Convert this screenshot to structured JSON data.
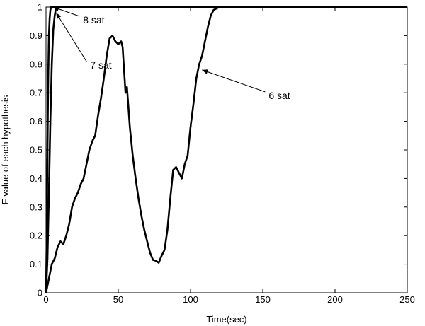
{
  "chart_data": {
    "type": "line",
    "xlabel": "Time(sec)",
    "ylabel": "F value of each hypothesis",
    "xlim": [
      0,
      250
    ],
    "ylim": [
      0,
      1
    ],
    "xticks": [
      0,
      50,
      100,
      150,
      200,
      250
    ],
    "yticks": [
      0,
      0.1,
      0.2,
      0.3,
      0.4,
      0.5,
      0.6,
      0.7,
      0.8,
      0.9,
      1
    ],
    "grid": false,
    "legend": "none",
    "line_color": "#000000",
    "series": [
      {
        "name": "8 sat",
        "x": [
          0,
          0.5,
          1,
          1.5,
          2,
          2.5,
          3,
          3.5,
          4,
          250
        ],
        "y": [
          0,
          0.2,
          0.5,
          0.75,
          0.9,
          0.96,
          0.99,
          1.0,
          1.0,
          1.0
        ]
      },
      {
        "name": "7 sat",
        "x": [
          0,
          1,
          2,
          3,
          4,
          5,
          6,
          7,
          250
        ],
        "y": [
          0,
          0.12,
          0.35,
          0.6,
          0.8,
          0.92,
          0.97,
          1.0,
          1.0
        ]
      },
      {
        "name": "6 sat",
        "x": [
          0,
          2,
          4,
          6,
          8,
          10,
          12,
          14,
          16,
          18,
          20,
          22,
          24,
          26,
          28,
          30,
          32,
          34,
          36,
          38,
          40,
          42,
          44,
          46,
          48,
          50,
          52,
          53,
          54,
          55,
          56,
          58,
          60,
          62,
          64,
          66,
          68,
          70,
          72,
          74,
          76,
          78,
          80,
          82,
          84,
          86,
          88,
          90,
          92,
          94,
          96,
          98,
          100,
          102,
          104,
          106,
          108,
          110,
          112,
          114,
          116,
          118,
          120,
          250
        ],
        "y": [
          0,
          0.05,
          0.1,
          0.12,
          0.16,
          0.18,
          0.17,
          0.2,
          0.24,
          0.3,
          0.33,
          0.35,
          0.38,
          0.4,
          0.45,
          0.5,
          0.53,
          0.55,
          0.62,
          0.68,
          0.75,
          0.83,
          0.89,
          0.9,
          0.88,
          0.87,
          0.88,
          0.86,
          0.78,
          0.7,
          0.72,
          0.58,
          0.48,
          0.4,
          0.33,
          0.27,
          0.22,
          0.18,
          0.14,
          0.115,
          0.112,
          0.105,
          0.13,
          0.15,
          0.22,
          0.33,
          0.43,
          0.44,
          0.42,
          0.4,
          0.45,
          0.48,
          0.58,
          0.66,
          0.75,
          0.8,
          0.83,
          0.88,
          0.93,
          0.97,
          0.99,
          0.995,
          1.0,
          1.0
        ]
      }
    ],
    "annotations": [
      {
        "text": "8 sat",
        "point": [
          5,
          1.0
        ]
      },
      {
        "text": "7 sat",
        "point": [
          7,
          0.98
        ]
      },
      {
        "text": "6 sat",
        "point": [
          108,
          0.78
        ]
      }
    ]
  }
}
